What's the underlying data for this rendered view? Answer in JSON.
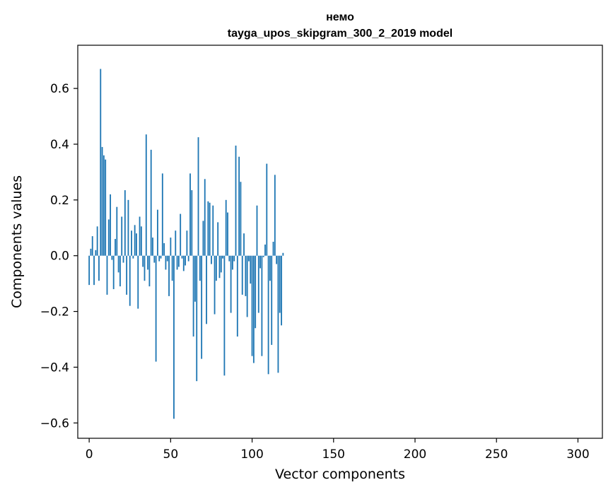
{
  "chart_data": {
    "type": "bar",
    "title": "немо",
    "subtitle": "tayga_upos_skipgram_300_2_2019 model",
    "xlabel": "Vector components",
    "ylabel": "Components values",
    "xlim": [
      -7,
      315
    ],
    "ylim": [
      -0.655,
      0.755
    ],
    "x_ticks": [
      0,
      50,
      100,
      150,
      200,
      250,
      300
    ],
    "x_tick_labels": [
      "0",
      "50",
      "100",
      "150",
      "200",
      "250",
      "300"
    ],
    "y_ticks": [
      -0.6,
      -0.4,
      -0.2,
      0.0,
      0.2,
      0.4,
      0.6
    ],
    "y_tick_labels": [
      "−0.6",
      "−0.4",
      "−0.2",
      "0.0",
      "0.2",
      "0.4",
      "0.6"
    ],
    "bar_color": "#1f77b4",
    "values": [
      -0.105,
      0.025,
      0.07,
      -0.105,
      0.02,
      0.105,
      -0.09,
      0.67,
      0.39,
      0.36,
      0.345,
      -0.14,
      0.13,
      0.22,
      -0.015,
      -0.12,
      0.06,
      0.175,
      -0.06,
      -0.11,
      0.14,
      -0.025,
      0.235,
      -0.14,
      0.2,
      -0.18,
      0.09,
      -0.01,
      0.11,
      0.08,
      -0.19,
      0.14,
      0.105,
      -0.04,
      -0.09,
      0.435,
      -0.05,
      -0.11,
      0.38,
      0.065,
      -0.025,
      -0.38,
      0.165,
      -0.02,
      -0.01,
      0.295,
      0.045,
      -0.05,
      -0.02,
      -0.145,
      0.065,
      -0.09,
      -0.585,
      0.09,
      -0.05,
      -0.04,
      0.15,
      -0.01,
      -0.055,
      -0.035,
      0.09,
      -0.02,
      0.295,
      0.235,
      -0.29,
      -0.165,
      -0.45,
      0.425,
      -0.09,
      -0.37,
      0.125,
      0.275,
      -0.245,
      0.195,
      0.19,
      -0.03,
      0.18,
      -0.21,
      -0.09,
      0.12,
      -0.08,
      -0.06,
      -0.01,
      -0.43,
      0.2,
      0.155,
      -0.02,
      -0.205,
      -0.05,
      -0.02,
      0.395,
      -0.29,
      0.355,
      0.265,
      -0.14,
      0.08,
      -0.145,
      -0.22,
      -0.02,
      -0.1,
      -0.36,
      -0.385,
      -0.26,
      0.18,
      -0.205,
      -0.045,
      -0.36,
      -0.005,
      0.04,
      0.33,
      -0.425,
      -0.09,
      -0.32,
      0.05,
      0.29,
      -0.03,
      -0.42,
      -0.205,
      -0.25,
      0.01
    ]
  }
}
